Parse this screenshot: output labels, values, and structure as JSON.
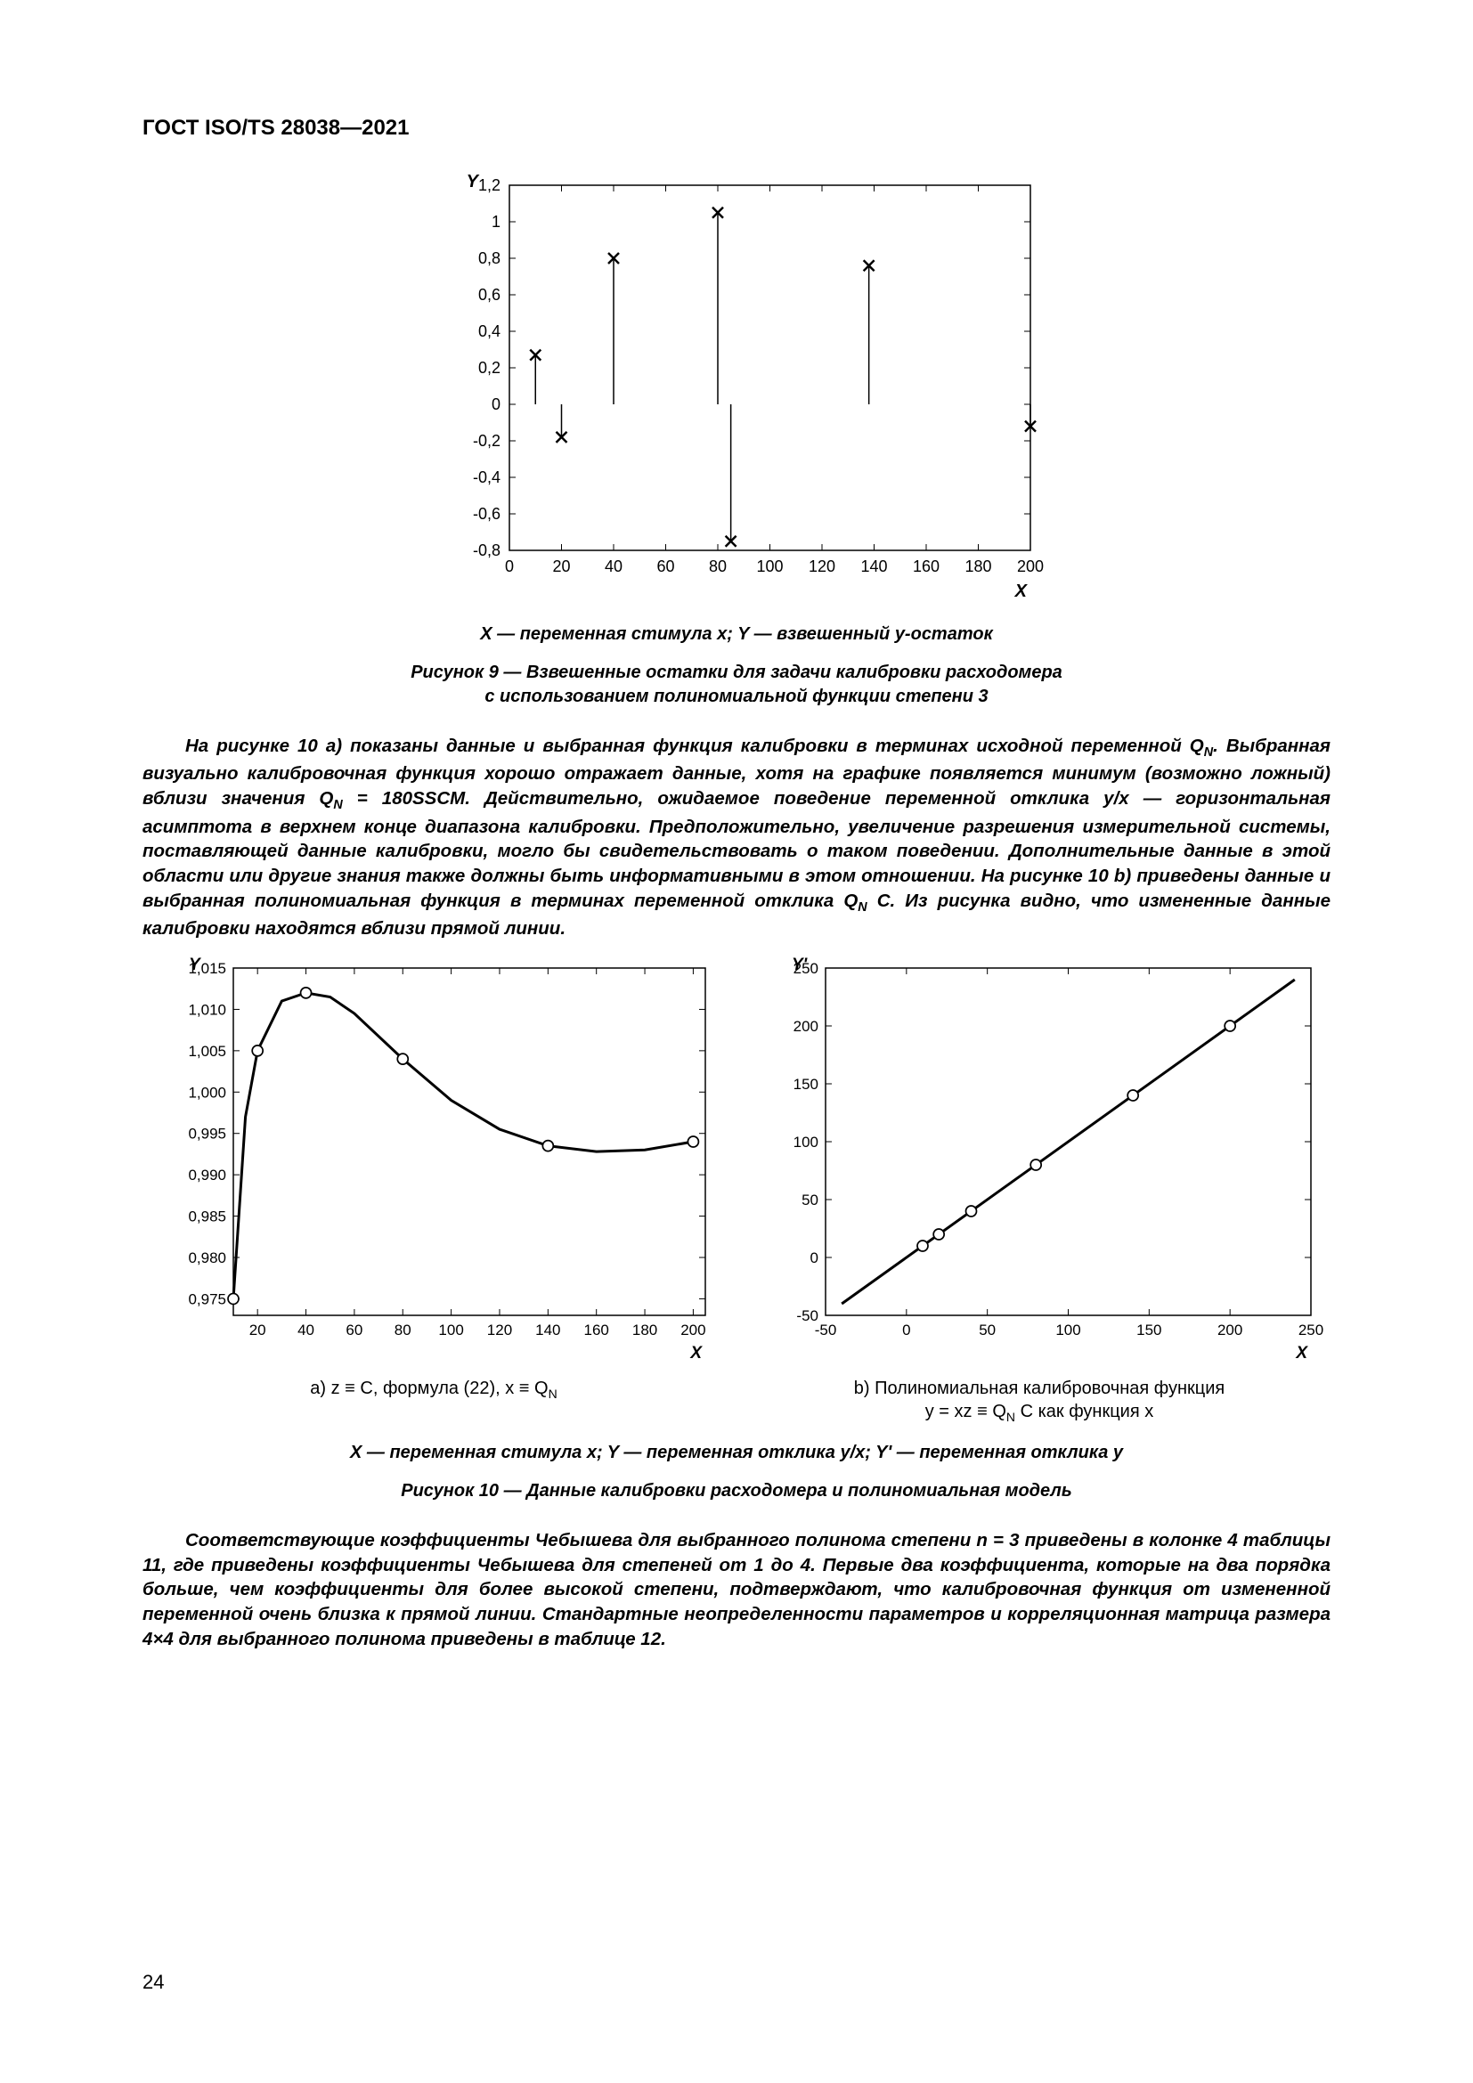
{
  "header": "ГОСТ ISO/TS 28038—2021",
  "pagenum": "24",
  "fig9": {
    "type": "scatter-stem",
    "y_label": "Y",
    "x_label": "X",
    "x_ticks": [
      0,
      20,
      40,
      60,
      80,
      100,
      120,
      140,
      160,
      180,
      200
    ],
    "y_ticks": [
      -0.8,
      -0.6,
      -0.4,
      -0.2,
      0,
      0.2,
      0.4,
      0.6,
      0.8,
      1.0,
      1.2
    ],
    "xlim": [
      0,
      200
    ],
    "ylim": [
      -0.8,
      1.2
    ],
    "points": [
      {
        "x": 10,
        "y": 0.27
      },
      {
        "x": 20,
        "y": -0.18
      },
      {
        "x": 40,
        "y": 0.8
      },
      {
        "x": 80,
        "y": 1.05
      },
      {
        "x": 85,
        "y": -0.75
      },
      {
        "x": 138,
        "y": 0.76
      },
      {
        "x": 200,
        "y": -0.12
      }
    ],
    "marker": "x",
    "marker_color": "#000000",
    "stem_color": "#000000",
    "axis_color": "#000000",
    "background": "#ffffff",
    "axis_caption": "X — переменная стимула x; Y — взвешенный y-остаток",
    "title_line1": "Рисунок 9 — Взвешенные остатки для задачи калибровки расходомера",
    "title_line2": "с использованием полиномиальной функции степени 3"
  },
  "para1": {
    "text": "На рисунке 10 a) показаны данные и выбранная функция калибровки в терминах исходной переменной Q_N. Выбранная визуально калибровочная функция хорошо отражает данные, хотя на графике появляется минимум (возможно ложный) вблизи значения Q_N = 180SSCM. Действительно, ожидаемое поведение переменной отклика y/x — горизонтальная асимптота в верхнем конце диапазона калибровки. Предположительно, увеличение разрешения измерительной системы, поставляющей данные калибровки, могло бы свидетельствовать о таком поведении. Дополнительные данные в этой области или другие знания также должны быть информативными в этом отношении. На рисунке 10 b) приведены данные и выбранная полиномиальная функция в терминах переменной отклика Q_N C. Из рисунка видно, что измененные данные калибровки находятся вблизи прямой линии."
  },
  "fig10a": {
    "type": "line",
    "y_label": "Y",
    "x_label": "X",
    "x_ticks": [
      20,
      40,
      60,
      80,
      100,
      120,
      140,
      160,
      180,
      200
    ],
    "y_ticks": [
      0.975,
      0.98,
      0.985,
      0.99,
      0.995,
      1.0,
      1.005,
      1.01,
      1.015
    ],
    "xlim": [
      10,
      205
    ],
    "ylim": [
      0.973,
      1.015
    ],
    "curve": [
      {
        "x": 10,
        "y": 0.975
      },
      {
        "x": 15,
        "y": 0.997
      },
      {
        "x": 20,
        "y": 1.005
      },
      {
        "x": 30,
        "y": 1.011
      },
      {
        "x": 40,
        "y": 1.012
      },
      {
        "x": 50,
        "y": 1.0115
      },
      {
        "x": 60,
        "y": 1.0095
      },
      {
        "x": 80,
        "y": 1.004
      },
      {
        "x": 100,
        "y": 0.999
      },
      {
        "x": 120,
        "y": 0.9955
      },
      {
        "x": 140,
        "y": 0.9935
      },
      {
        "x": 160,
        "y": 0.9928
      },
      {
        "x": 180,
        "y": 0.993
      },
      {
        "x": 200,
        "y": 0.994
      }
    ],
    "data_points": [
      {
        "x": 10,
        "y": 0.975
      },
      {
        "x": 20,
        "y": 1.005
      },
      {
        "x": 40,
        "y": 1.012
      },
      {
        "x": 80,
        "y": 1.004
      },
      {
        "x": 140,
        "y": 0.9935
      },
      {
        "x": 200,
        "y": 0.994
      }
    ],
    "line_color": "#000000",
    "line_width": 3,
    "marker": "o",
    "marker_color": "#000000",
    "marker_fill": "none",
    "axis_color": "#000000",
    "subcaption": "a) z ≡ C, формула (22), x ≡ Q_N"
  },
  "fig10b": {
    "type": "line",
    "y_label": "Y'",
    "x_label": "X",
    "x_ticks": [
      -50,
      0,
      50,
      100,
      150,
      200,
      250
    ],
    "y_ticks": [
      -50,
      0,
      50,
      100,
      150,
      200,
      250
    ],
    "xlim": [
      -50,
      250
    ],
    "ylim": [
      -50,
      250
    ],
    "line_start": {
      "x": -40,
      "y": -40
    },
    "line_end": {
      "x": 240,
      "y": 240
    },
    "data_points": [
      {
        "x": 10,
        "y": 10
      },
      {
        "x": 20,
        "y": 20
      },
      {
        "x": 40,
        "y": 40
      },
      {
        "x": 80,
        "y": 80
      },
      {
        "x": 140,
        "y": 140
      },
      {
        "x": 200,
        "y": 200
      }
    ],
    "line_color": "#000000",
    "line_width": 3,
    "marker": "o",
    "axis_color": "#000000",
    "subcaption_line1": "b) Полиномиальная калибровочная функция",
    "subcaption_line2": "y = xz ≡ Q_N C как функция x"
  },
  "fig10_axis_caption": "X — переменная стимула x; Y — переменная отклика y/x; Y' — переменная отклика y",
  "fig10_title": "Рисунок 10 — Данные калибровки расходомера и полиномиальная модель",
  "para2": {
    "text": "Соответствующие коэффициенты Чебышева для выбранного полинома степени n = 3 приведены в колонке 4 таблицы 11, где приведены коэффициенты Чебышева для степеней от 1 до 4. Первые два коэффициента, которые на два порядка больше, чем коэффициенты для более высокой степени, подтверждают, что калибровочная функция от измененной переменной очень близка к прямой линии. Стандартные неопределенности параметров и корреляционная матрица размера 4×4 для выбранного полинома приведены в таблице 12."
  }
}
